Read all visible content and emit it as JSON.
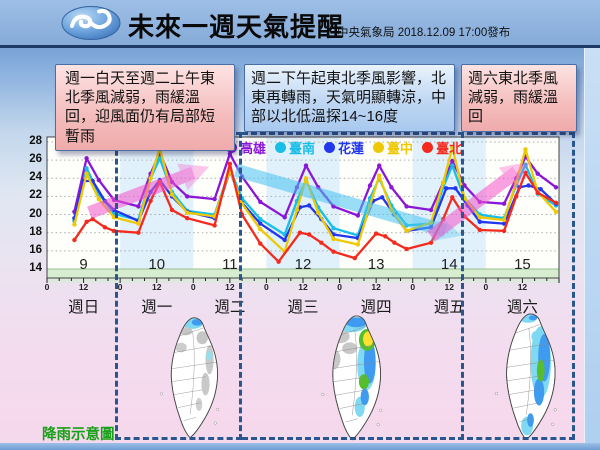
{
  "header": {
    "title": "未來一週天氣提醒",
    "publisher": "中央氣象局 2018.12.09 17:00發布",
    "logo": "cwb-swirl-logo"
  },
  "alerts": [
    {
      "type": "warm",
      "text": "週一白天至週二上午東北季風減弱，雨緩溫回，迎風面仍有局部短暫雨"
    },
    {
      "type": "cold",
      "text": "週二下午起東北季風影響，北東再轉雨，天氣明顯轉涼，中部以北低溫探14~16度"
    },
    {
      "type": "warm",
      "text": "週六東北季風減弱，雨緩溫回"
    }
  ],
  "footer_label": "降雨示意圖",
  "chart_data": {
    "type": "line",
    "ylim": [
      13,
      28.8
    ],
    "yticks": [
      14,
      16,
      18,
      20,
      22,
      24,
      26,
      28
    ],
    "x_axis_hour_labels": [
      "0",
      "12"
    ],
    "days": [
      {
        "date": "9",
        "weekday": "週日",
        "shaded": false
      },
      {
        "date": "10",
        "weekday": "週一",
        "shaded": true
      },
      {
        "date": "11",
        "weekday": "週二",
        "shaded": false
      },
      {
        "date": "12",
        "weekday": "週三",
        "shaded": true
      },
      {
        "date": "13",
        "weekday": "週四",
        "shaded": false
      },
      {
        "date": "14",
        "weekday": "週五",
        "shaded": true
      },
      {
        "date": "15",
        "weekday": "週六",
        "shaded": false
      }
    ],
    "style": {
      "day_band": "#E1F1FB",
      "cold_band": "#D6EECF",
      "grid": "#ABABAB",
      "frame": "#444444",
      "dashed_box": "#2A568F"
    },
    "series": [
      {
        "name": "高雄",
        "color": "#8A16D8",
        "points": [
          [
            0,
            9,
            20.3
          ],
          [
            0,
            13,
            26.2
          ],
          [
            0,
            17,
            23.8
          ],
          [
            0,
            22,
            21.6
          ],
          [
            1,
            6,
            20.9
          ],
          [
            1,
            10,
            24.5
          ],
          [
            1,
            13,
            26.8
          ],
          [
            1,
            17,
            23.6
          ],
          [
            1,
            22,
            22.0
          ],
          [
            2,
            7,
            21.7
          ],
          [
            2,
            12,
            26.7
          ],
          [
            2,
            16,
            24.2
          ],
          [
            2,
            22,
            21.4
          ],
          [
            3,
            6,
            19.7
          ],
          [
            3,
            10,
            23.0
          ],
          [
            3,
            13,
            25.4
          ],
          [
            3,
            17,
            23.0
          ],
          [
            3,
            22,
            20.9
          ],
          [
            4,
            6,
            19.9
          ],
          [
            4,
            10,
            23.2
          ],
          [
            4,
            13,
            25.4
          ],
          [
            4,
            17,
            23.0
          ],
          [
            4,
            22,
            20.9
          ],
          [
            5,
            6,
            20.5
          ],
          [
            5,
            10,
            23.5
          ],
          [
            5,
            13,
            25.9
          ],
          [
            5,
            17,
            23.2
          ],
          [
            5,
            22,
            21.4
          ],
          [
            6,
            6,
            21.2
          ],
          [
            6,
            10,
            24.0
          ],
          [
            6,
            13,
            26.4
          ],
          [
            6,
            17,
            24.5
          ],
          [
            6,
            23,
            23.0
          ]
        ]
      },
      {
        "name": "臺南",
        "color": "#16BEE8",
        "points": [
          [
            0,
            9,
            19.3
          ],
          [
            0,
            13,
            25.1
          ],
          [
            0,
            17,
            22.3
          ],
          [
            0,
            22,
            20.1
          ],
          [
            1,
            6,
            19.4
          ],
          [
            1,
            10,
            24.0
          ],
          [
            1,
            13,
            26.2
          ],
          [
            1,
            17,
            22.5
          ],
          [
            1,
            22,
            20.4
          ],
          [
            2,
            7,
            20.0
          ],
          [
            2,
            12,
            25.0
          ],
          [
            2,
            16,
            21.8
          ],
          [
            2,
            22,
            19.5
          ],
          [
            3,
            6,
            17.8
          ],
          [
            3,
            10,
            21.5
          ],
          [
            3,
            13,
            23.8
          ],
          [
            3,
            17,
            20.8
          ],
          [
            3,
            22,
            18.5
          ],
          [
            4,
            6,
            17.7
          ],
          [
            4,
            10,
            21.8
          ],
          [
            4,
            13,
            24.0
          ],
          [
            4,
            17,
            21.0
          ],
          [
            4,
            22,
            18.8
          ],
          [
            5,
            6,
            19.0
          ],
          [
            5,
            10,
            23.0
          ],
          [
            5,
            13,
            25.4
          ],
          [
            5,
            17,
            21.8
          ],
          [
            5,
            22,
            20.0
          ],
          [
            6,
            6,
            19.6
          ],
          [
            6,
            10,
            23.3
          ],
          [
            6,
            13,
            25.5
          ],
          [
            6,
            17,
            22.3
          ],
          [
            6,
            23,
            21.0
          ]
        ]
      },
      {
        "name": "花蓮",
        "color": "#2236EE",
        "points": [
          [
            0,
            9,
            19.6
          ],
          [
            0,
            12,
            23.7
          ],
          [
            0,
            15,
            23.7
          ],
          [
            0,
            19,
            21.5
          ],
          [
            0,
            22,
            20.5
          ],
          [
            1,
            6,
            19.3
          ],
          [
            1,
            10,
            22.5
          ],
          [
            1,
            13,
            23.8
          ],
          [
            1,
            17,
            22.0
          ],
          [
            1,
            22,
            20.3
          ],
          [
            2,
            7,
            19.6
          ],
          [
            2,
            12,
            24.8
          ],
          [
            2,
            16,
            21.3
          ],
          [
            2,
            22,
            19.0
          ],
          [
            3,
            6,
            17.2
          ],
          [
            3,
            11,
            20.8
          ],
          [
            3,
            14,
            21.0
          ],
          [
            3,
            18,
            19.5
          ],
          [
            3,
            22,
            17.8
          ],
          [
            4,
            6,
            17.4
          ],
          [
            4,
            11,
            21.5
          ],
          [
            4,
            14,
            21.9
          ],
          [
            4,
            18,
            20.0
          ],
          [
            4,
            22,
            18.2
          ],
          [
            5,
            6,
            18.6
          ],
          [
            5,
            11,
            22.9
          ],
          [
            5,
            14,
            22.9
          ],
          [
            5,
            18,
            21.0
          ],
          [
            5,
            22,
            19.2
          ],
          [
            6,
            6,
            19.0
          ],
          [
            6,
            11,
            23.0
          ],
          [
            6,
            14,
            23.2
          ],
          [
            6,
            18,
            22.8
          ],
          [
            6,
            23,
            21.2
          ]
        ]
      },
      {
        "name": "臺中",
        "color": "#EEC902",
        "points": [
          [
            0,
            9,
            18.9
          ],
          [
            0,
            13,
            24.5
          ],
          [
            0,
            17,
            21.7
          ],
          [
            0,
            22,
            19.7
          ],
          [
            1,
            6,
            19.0
          ],
          [
            1,
            10,
            24.0
          ],
          [
            1,
            13,
            27.3
          ],
          [
            1,
            17,
            22.2
          ],
          [
            1,
            22,
            20.2
          ],
          [
            2,
            7,
            19.8
          ],
          [
            2,
            12,
            24.9
          ],
          [
            2,
            16,
            21.2
          ],
          [
            2,
            22,
            18.4
          ],
          [
            3,
            6,
            15.9
          ],
          [
            3,
            10,
            20.5
          ],
          [
            3,
            13,
            24.0
          ],
          [
            3,
            17,
            20.2
          ],
          [
            3,
            22,
            17.3
          ],
          [
            4,
            6,
            16.7
          ],
          [
            4,
            10,
            21.0
          ],
          [
            4,
            13,
            24.3
          ],
          [
            4,
            17,
            20.5
          ],
          [
            4,
            22,
            18.2
          ],
          [
            5,
            6,
            19.1
          ],
          [
            5,
            10,
            23.5
          ],
          [
            5,
            13,
            27.4
          ],
          [
            5,
            17,
            21.8
          ],
          [
            5,
            22,
            19.7
          ],
          [
            6,
            6,
            19.4
          ],
          [
            6,
            10,
            23.6
          ],
          [
            6,
            13,
            27.2
          ],
          [
            6,
            17,
            22.5
          ],
          [
            6,
            23,
            20.3
          ]
        ]
      },
      {
        "name": "臺北",
        "color": "#F52A1E",
        "points": [
          [
            0,
            9,
            17.2
          ],
          [
            0,
            13,
            19.2
          ],
          [
            0,
            15,
            19.5
          ],
          [
            0,
            19,
            18.6
          ],
          [
            0,
            22,
            18.2
          ],
          [
            1,
            6,
            18.0
          ],
          [
            1,
            10,
            21.5
          ],
          [
            1,
            13,
            23.6
          ],
          [
            1,
            17,
            20.5
          ],
          [
            1,
            22,
            19.6
          ],
          [
            2,
            7,
            18.8
          ],
          [
            2,
            12,
            25.6
          ],
          [
            2,
            16,
            20.0
          ],
          [
            2,
            22,
            16.8
          ],
          [
            3,
            4,
            14.8
          ],
          [
            3,
            11,
            18.0
          ],
          [
            3,
            14,
            17.8
          ],
          [
            3,
            18,
            16.9
          ],
          [
            3,
            22,
            15.9
          ],
          [
            4,
            5,
            15.2
          ],
          [
            4,
            12,
            17.9
          ],
          [
            4,
            15,
            17.6
          ],
          [
            4,
            18,
            16.9
          ],
          [
            4,
            22,
            16.2
          ],
          [
            5,
            6,
            16.9
          ],
          [
            5,
            10,
            19.5
          ],
          [
            5,
            13,
            21.9
          ],
          [
            5,
            17,
            19.8
          ],
          [
            5,
            22,
            18.3
          ],
          [
            6,
            6,
            18.2
          ],
          [
            6,
            10,
            22.0
          ],
          [
            6,
            13,
            24.6
          ],
          [
            6,
            17,
            22.4
          ],
          [
            6,
            23,
            21.3
          ]
        ]
      }
    ],
    "trend_arrows": [
      {
        "d1": 0.58,
        "t1": 20.2,
        "d2": 2.0,
        "t2": 24.6,
        "color": "#F655CC",
        "meaning": "warming"
      },
      {
        "d1": 2.58,
        "t1": 24.9,
        "d2": 5.45,
        "t2": 18.2,
        "color": "#49C3F2",
        "meaning": "cooling"
      },
      {
        "d1": 5.25,
        "t1": 17.6,
        "d2": 6.42,
        "t2": 24.7,
        "color": "#F655CC",
        "meaning": "warming"
      }
    ],
    "period_boxes_day_units": [
      [
        0.93,
        2.67
      ],
      [
        2.67,
        5.74
      ],
      [
        5.74,
        7.26
      ]
    ]
  },
  "maps": [
    {
      "name": "rain-map-mon-tue",
      "blobs": [
        [
          58,
          10,
          13,
          7,
          "#7FD9F2"
        ],
        [
          64,
          9,
          7,
          4,
          "#3E9BF0"
        ],
        [
          50,
          20,
          8,
          5,
          "#C6C6C6"
        ],
        [
          70,
          28,
          7,
          8,
          "#C6C6C6"
        ],
        [
          79,
          55,
          5,
          18,
          "#C9C9C9"
        ],
        [
          74,
          85,
          5,
          14,
          "#C9C9C9"
        ],
        [
          44,
          40,
          7,
          6,
          "#CDCDCD"
        ],
        [
          78,
          50,
          3,
          6,
          "#8FE0F0"
        ],
        [
          66,
          110,
          4,
          8,
          "#CFCFCF"
        ]
      ]
    },
    {
      "name": "rain-map-wed-fri",
      "blobs": [
        [
          52,
          14,
          20,
          9,
          "#7FD9F2"
        ],
        [
          60,
          11,
          13,
          6,
          "#3E9BF0"
        ],
        [
          40,
          28,
          12,
          8,
          "#C8C8C8"
        ],
        [
          33,
          55,
          8,
          12,
          "#C8C8C8"
        ],
        [
          52,
          42,
          9,
          7,
          "#C8C8C8"
        ],
        [
          72,
          62,
          11,
          30,
          "#7FD9F2"
        ],
        [
          76,
          58,
          7,
          26,
          "#3E9BF0"
        ],
        [
          73,
          32,
          10,
          13,
          "#55BE2B"
        ],
        [
          74,
          31,
          6,
          9,
          "#FFE02E"
        ],
        [
          69,
          82,
          6,
          9,
          "#55BE2B"
        ],
        [
          64,
          112,
          6,
          12,
          "#7FD9F2"
        ],
        [
          70,
          100,
          5,
          10,
          "#3E9BF0"
        ]
      ]
    },
    {
      "name": "rain-map-sat",
      "blobs": [
        [
          57,
          9,
          10,
          5,
          "#7FD9F2"
        ],
        [
          63,
          8,
          5,
          3,
          "#3E9BF0"
        ],
        [
          68,
          30,
          7,
          7,
          "#7FD9F2"
        ],
        [
          72,
          60,
          12,
          42,
          "#7FD9F2"
        ],
        [
          76,
          55,
          7,
          28,
          "#3E9BF0"
        ],
        [
          70,
          95,
          6,
          16,
          "#3E9BF0"
        ],
        [
          72,
          70,
          4.5,
          13,
          "#55BE2B"
        ],
        [
          56,
          135,
          7,
          11,
          "#7FD9F2"
        ],
        [
          60,
          128,
          4,
          8,
          "#3E9BF0"
        ]
      ]
    }
  ]
}
